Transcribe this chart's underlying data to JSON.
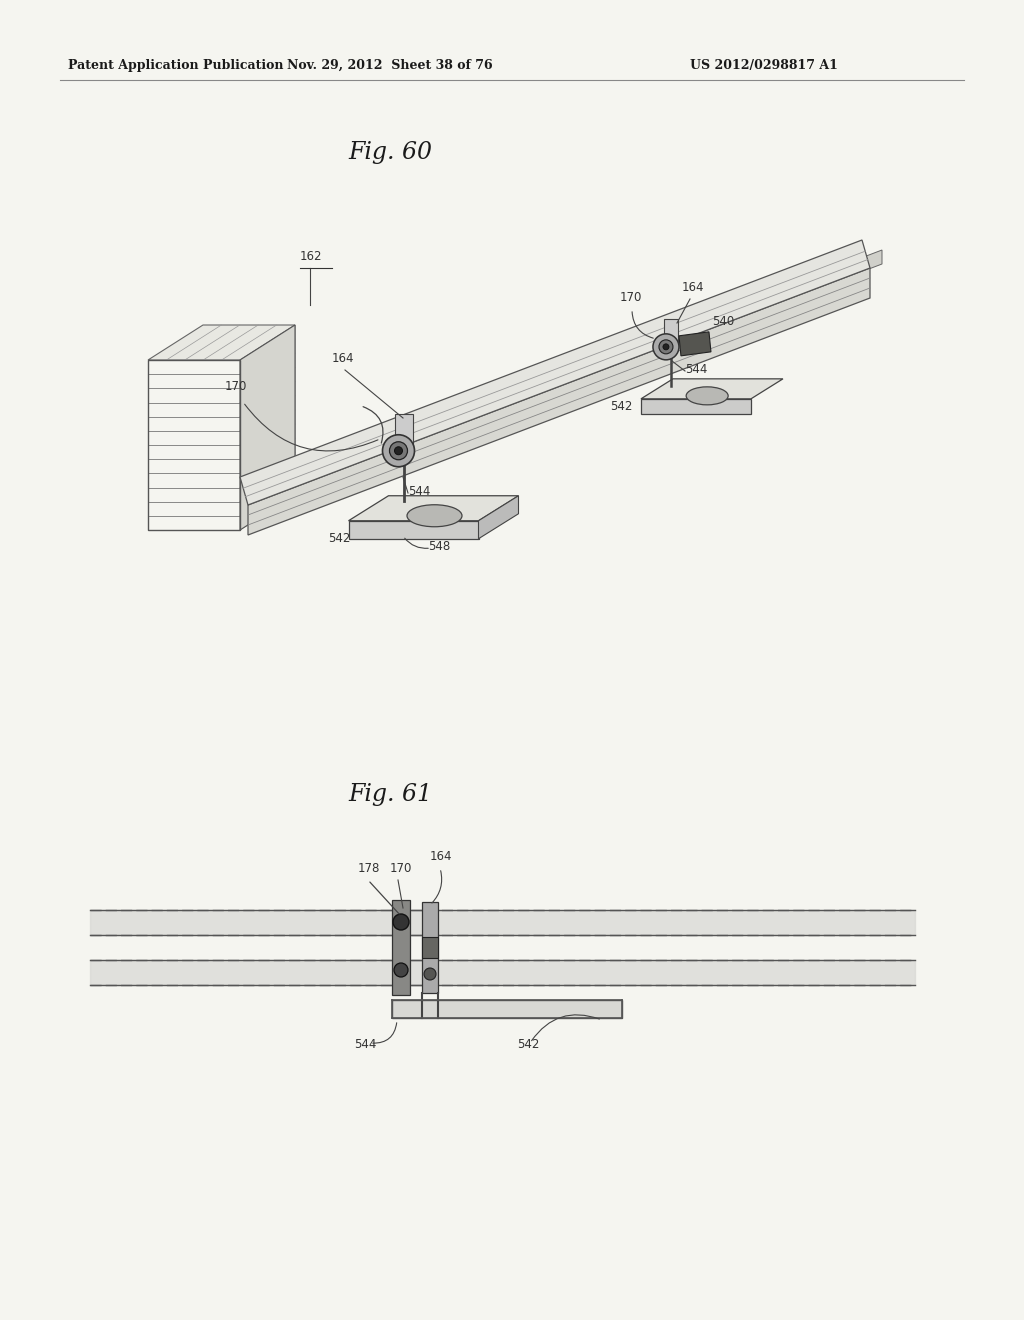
{
  "bg_color": "#f5f5f0",
  "header_left": "Patent Application Publication",
  "header_mid": "Nov. 29, 2012  Sheet 38 of 76",
  "header_right": "US 2012/0298817 A1",
  "fig60_title": "Fig. 60",
  "fig61_title": "Fig. 61",
  "text_color": "#1a1a1a",
  "line_color": "#555555",
  "draw_color": "#666666",
  "label_color": "#333333"
}
